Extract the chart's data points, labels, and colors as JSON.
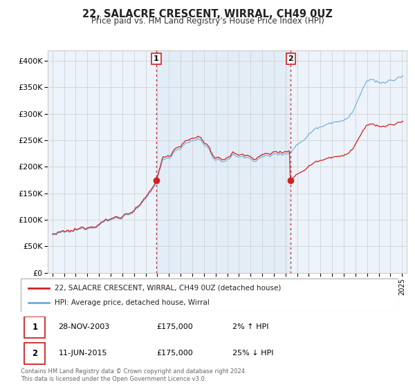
{
  "title": "22, SALACRE CRESCENT, WIRRAL, CH49 0UZ",
  "subtitle": "Price paid vs. HM Land Registry's House Price Index (HPI)",
  "hpi_color": "#6baed6",
  "price_color": "#cc2222",
  "marker_color": "#cc2222",
  "bg_shaded": "#dce9f5",
  "vline_color": "#cc2222",
  "grid_color": "#cccccc",
  "purchase1_date": 2003.92,
  "purchase1_price": 175000,
  "purchase2_date": 2015.44,
  "purchase2_price": 175000,
  "xmin": 1994.6,
  "xmax": 2025.4,
  "ymin": 0,
  "ymax": 420000,
  "yticks": [
    0,
    50000,
    100000,
    150000,
    200000,
    250000,
    300000,
    350000,
    400000
  ],
  "ytick_labels": [
    "£0",
    "£50K",
    "£100K",
    "£150K",
    "£200K",
    "£250K",
    "£300K",
    "£350K",
    "£400K"
  ],
  "xticks": [
    1995,
    1996,
    1997,
    1998,
    1999,
    2000,
    2001,
    2002,
    2003,
    2004,
    2005,
    2006,
    2007,
    2008,
    2009,
    2010,
    2011,
    2012,
    2013,
    2014,
    2015,
    2016,
    2017,
    2018,
    2019,
    2020,
    2021,
    2022,
    2023,
    2024,
    2025
  ],
  "legend_label_price": "22, SALACRE CRESCENT, WIRRAL, CH49 0UZ (detached house)",
  "legend_label_hpi": "HPI: Average price, detached house, Wirral",
  "table_rows": [
    {
      "num": "1",
      "date": "28-NOV-2003",
      "price": "£175,000",
      "hpi": "2% ↑ HPI"
    },
    {
      "num": "2",
      "date": "11-JUN-2015",
      "price": "£175,000",
      "hpi": "25% ↓ HPI"
    }
  ],
  "footnote": "Contains HM Land Registry data © Crown copyright and database right 2024.\nThis data is licensed under the Open Government Licence v3.0.",
  "plot_facecolor": "#edf3fa",
  "fig_facecolor": "#ffffff",
  "anchor_times": [
    1995.0,
    1996.0,
    1997.0,
    1997.5,
    1998.0,
    1998.5,
    1999.0,
    1999.5,
    2000.0,
    2000.5,
    2001.0,
    2001.5,
    2002.0,
    2002.5,
    2003.0,
    2003.5,
    2003.92,
    2004.25,
    2004.5,
    2005.0,
    2005.5,
    2006.0,
    2006.5,
    2007.0,
    2007.5,
    2007.75,
    2008.0,
    2008.5,
    2008.75,
    2009.0,
    2009.5,
    2010.0,
    2010.5,
    2011.0,
    2011.5,
    2012.0,
    2012.5,
    2013.0,
    2013.5,
    2014.0,
    2014.5,
    2015.0,
    2015.44,
    2015.5,
    2016.0,
    2016.5,
    2017.0,
    2017.5,
    2018.0,
    2018.5,
    2019.0,
    2019.5,
    2020.0,
    2020.5,
    2021.0,
    2021.5,
    2022.0,
    2022.5,
    2023.0,
    2023.5,
    2024.0,
    2024.5,
    2025.0
  ],
  "anchor_hpi": [
    72000,
    74000,
    78000,
    82000,
    87000,
    90000,
    94000,
    97000,
    100000,
    103000,
    107000,
    111000,
    116000,
    124000,
    135000,
    155000,
    172000,
    195000,
    215000,
    218000,
    232000,
    238000,
    244000,
    248000,
    252000,
    250000,
    244000,
    232000,
    218000,
    210000,
    207000,
    215000,
    222000,
    220000,
    218000,
    215000,
    215000,
    218000,
    220000,
    223000,
    226000,
    228000,
    228000,
    230000,
    242000,
    252000,
    262000,
    272000,
    278000,
    283000,
    287000,
    288000,
    285000,
    295000,
    315000,
    340000,
    358000,
    365000,
    360000,
    358000,
    362000,
    365000,
    370000
  ]
}
